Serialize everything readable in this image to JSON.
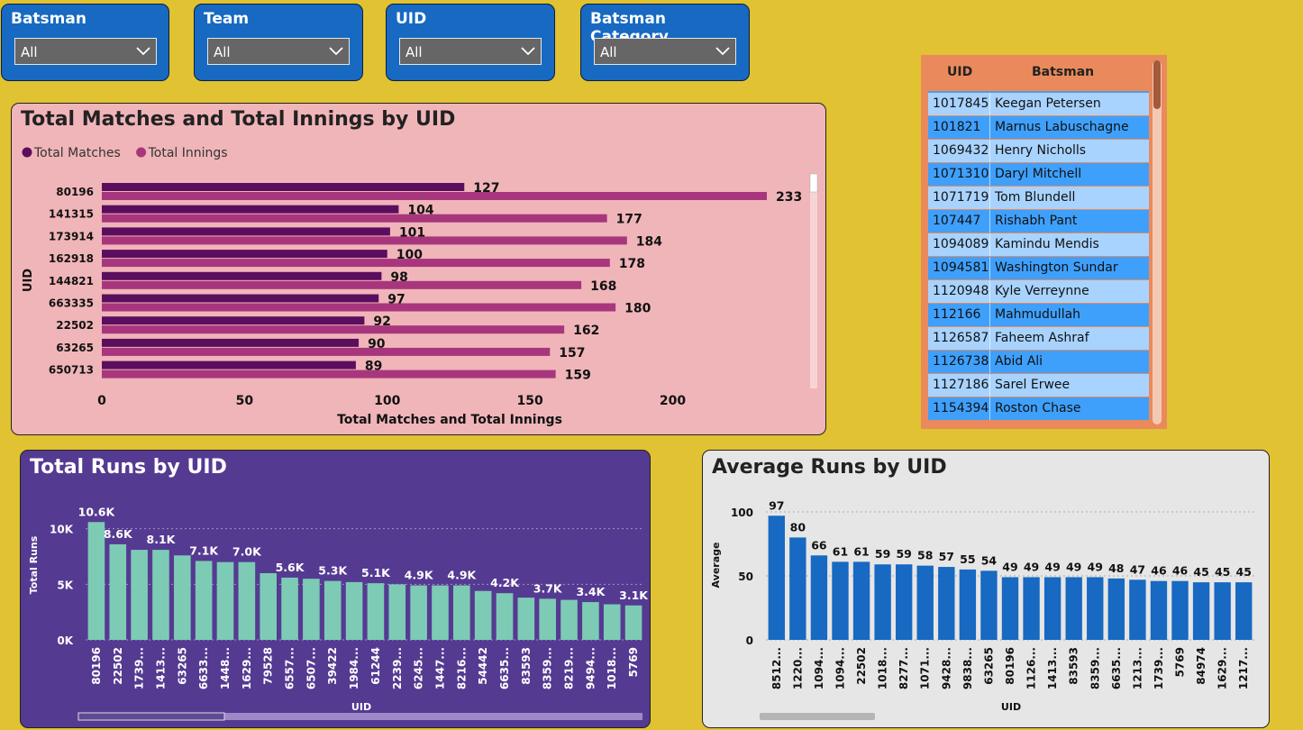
{
  "slicers": [
    {
      "title": "Batsman",
      "value": "All"
    },
    {
      "title": "Team",
      "value": "All"
    },
    {
      "title": "UID",
      "value": "All"
    },
    {
      "title": "Batsman Category",
      "value": "All"
    }
  ],
  "table": {
    "headers": {
      "uid": "UID",
      "batsman": "Batsman"
    },
    "rows": [
      {
        "uid": "1017845",
        "batsman": "Keegan Petersen"
      },
      {
        "uid": "101821",
        "batsman": "Marnus Labuschagne"
      },
      {
        "uid": "1069432",
        "batsman": "Henry Nicholls"
      },
      {
        "uid": "1071310",
        "batsman": "Daryl Mitchell"
      },
      {
        "uid": "1071719",
        "batsman": "Tom Blundell"
      },
      {
        "uid": "107447",
        "batsman": "Rishabh Pant"
      },
      {
        "uid": "1094089",
        "batsman": "Kamindu Mendis"
      },
      {
        "uid": "1094581",
        "batsman": "Washington Sundar"
      },
      {
        "uid": "1120948",
        "batsman": "Kyle Verreynne"
      },
      {
        "uid": "112166",
        "batsman": "Mahmudullah"
      },
      {
        "uid": "1126587",
        "batsman": "Faheem Ashraf"
      },
      {
        "uid": "1126738",
        "batsman": "Abid Ali"
      },
      {
        "uid": "1127186",
        "batsman": "Sarel Erwee"
      },
      {
        "uid": "1154394",
        "batsman": "Roston Chase"
      }
    ],
    "colors": {
      "light": "#A8D3FF",
      "dark": "#3FA0FC"
    }
  },
  "chart_data": [
    {
      "type": "bar",
      "orientation": "horizontal",
      "title": "Total Matches and Total Innings by UID",
      "xlabel": "Total Matches and Total Innings",
      "ylabel": "UID",
      "categories": [
        "80196",
        "141315",
        "173914",
        "162918",
        "144821",
        "663335",
        "22502",
        "63265",
        "650713"
      ],
      "series": [
        {
          "name": "Total Matches",
          "values": [
            127,
            104,
            101,
            100,
            98,
            97,
            92,
            90,
            89
          ],
          "color": "#5B0E5E"
        },
        {
          "name": "Total Innings",
          "values": [
            233,
            177,
            184,
            178,
            168,
            180,
            162,
            157,
            159
          ],
          "color": "#A8367D"
        }
      ],
      "xticks": [
        "0",
        "50",
        "100",
        "150",
        "200"
      ],
      "xlim": [
        0,
        233
      ],
      "legend": "top-left"
    },
    {
      "type": "bar",
      "title": "Total Runs by UID",
      "xlabel": "UID",
      "ylabel": "Total Runs",
      "categories": [
        "80196",
        "22502",
        "1739...",
        "1413...",
        "63265",
        "6633...",
        "1448...",
        "1629...",
        "79528",
        "6557...",
        "6507...",
        "39422",
        "1984...",
        "61244",
        "2239...",
        "6245...",
        "1447...",
        "8216...",
        "54442",
        "6635...",
        "83593",
        "8359...",
        "8219...",
        "9494...",
        "1018...",
        "5769"
      ],
      "values": [
        10600,
        8600,
        8100,
        8100,
        7600,
        7100,
        7000,
        7000,
        6000,
        5600,
        5500,
        5300,
        5200,
        5100,
        5000,
        4900,
        4900,
        4900,
        4400,
        4200,
        3800,
        3700,
        3600,
        3400,
        3200,
        3100
      ],
      "labels": [
        "10.6K",
        "8.6K",
        "",
        "8.1K",
        "",
        "7.1K",
        "",
        "7.0K",
        "",
        "5.6K",
        "",
        "5.3K",
        "",
        "5.1K",
        "",
        "4.9K",
        "",
        "4.9K",
        "",
        "4.2K",
        "",
        "3.7K",
        "",
        "3.4K",
        "",
        "3.1K"
      ],
      "yticks": [
        "0K",
        "5K",
        "10K"
      ],
      "ylim": [
        0,
        12000
      ],
      "color": "#7DCBB5"
    },
    {
      "type": "bar",
      "title": "Average Runs by UID",
      "xlabel": "UID",
      "ylabel": "Average",
      "categories": [
        "8512...",
        "1220...",
        "1094...",
        "1094...",
        "22502",
        "1018...",
        "8277...",
        "1071...",
        "9428...",
        "9838...",
        "63265",
        "80196",
        "1126...",
        "1413...",
        "83593",
        "8359...",
        "6635...",
        "1213...",
        "1739...",
        "5769",
        "84974",
        "1629...",
        "1217..."
      ],
      "values": [
        97,
        80,
        66,
        61,
        61,
        59,
        59,
        58,
        57,
        55,
        54,
        49,
        49,
        49,
        49,
        49,
        48,
        47,
        46,
        46,
        45,
        45,
        45
      ],
      "labels": [
        "97",
        "80",
        "66",
        "61",
        "61",
        "59",
        "59",
        "58",
        "57",
        "55",
        "54",
        "49",
        "49",
        "49",
        "49",
        "49",
        "48",
        "47",
        "46",
        "46",
        "45",
        "45",
        "45"
      ],
      "yticks": [
        "0",
        "50",
        "100"
      ],
      "ylim": [
        0,
        100
      ],
      "color": "#1769C2"
    }
  ]
}
